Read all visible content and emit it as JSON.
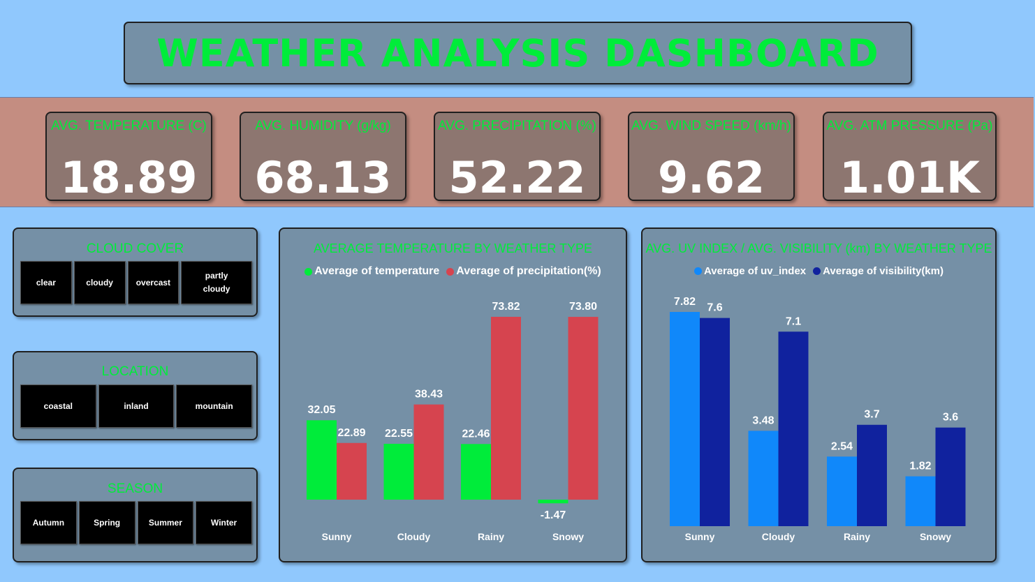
{
  "title": "WEATHER ANALYSIS DASHBOARD",
  "kpis": [
    {
      "label": "AVG. TEMPERATURE (C)",
      "value": "18.89"
    },
    {
      "label": "AVG. HUMIDITY (g/kg)",
      "value": "68.13"
    },
    {
      "label": "AVG. PRECIPITATION (%)",
      "value": "52.22"
    },
    {
      "label": "AVG. WIND SPEED (km/h)",
      "value": "9.62"
    },
    {
      "label": "AVG. ATM PRESSURE (Pa)",
      "value": "1.01K"
    }
  ],
  "slicers": {
    "cloud_cover": {
      "title": "CLOUD COVER",
      "items": [
        "clear",
        "cloudy",
        "overcast",
        "partly cloudy"
      ]
    },
    "location": {
      "title": "LOCATION",
      "items": [
        "coastal",
        "inland",
        "mountain"
      ]
    },
    "season": {
      "title": "SEASON",
      "items": [
        "Autumn",
        "Spring",
        "Summer",
        "Winter"
      ]
    }
  },
  "colors": {
    "background": "#90c8fd",
    "accent_green": "#00ec3a",
    "temperature": "#00ec3a",
    "precipitation": "#d6444f",
    "uv_index": "#1088fa",
    "visibility": "#10229e"
  },
  "icons": {
    "legend_marker": "circle-icon"
  },
  "chart_data": [
    {
      "type": "bar",
      "title": "AVERAGE TEMPERATURE BY WEATHER TYPE",
      "categories": [
        "Sunny",
        "Cloudy",
        "Rainy",
        "Snowy"
      ],
      "series": [
        {
          "name": "Average of temperature",
          "values": [
            32.05,
            22.55,
            22.46,
            -1.47
          ],
          "labels": [
            "32.05",
            "22.55",
            "22.46",
            "-1.47"
          ]
        },
        {
          "name": "Average of precipitation(%)",
          "values": [
            22.89,
            38.43,
            73.82,
            73.8
          ],
          "labels": [
            "22.89",
            "38.43",
            "73.82",
            "73.80"
          ]
        }
      ],
      "legend": "top-center",
      "grid": false
    },
    {
      "type": "bar",
      "title": "AVG. UV INDEX / AVG. VISIBILITY (km) BY WEATHER TYPE",
      "categories": [
        "Sunny",
        "Cloudy",
        "Rainy",
        "Snowy"
      ],
      "series": [
        {
          "name": "Average of uv_index",
          "values": [
            7.82,
            3.48,
            2.54,
            1.82
          ],
          "labels": [
            "7.82",
            "3.48",
            "2.54",
            "1.82"
          ]
        },
        {
          "name": "Average of visibility(km)",
          "values": [
            7.6,
            7.1,
            3.7,
            3.6
          ],
          "labels": [
            "7.6",
            "7.1",
            "3.7",
            "3.6"
          ]
        }
      ],
      "legend": "top-center",
      "grid": false
    }
  ]
}
